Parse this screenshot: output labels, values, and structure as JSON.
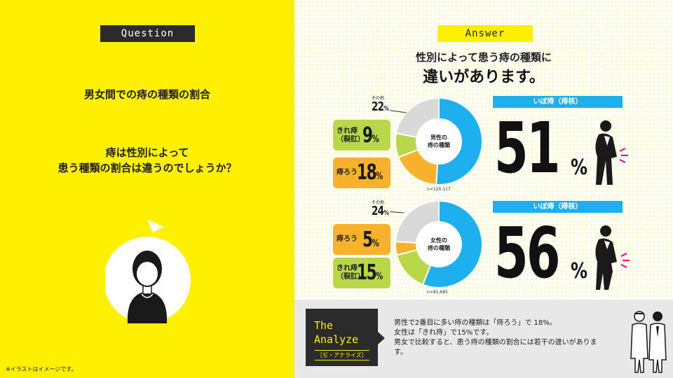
{
  "question": {
    "tag": "Question",
    "title": "男女間での痔の種類の割合",
    "body_lines": [
      "痔は性別によって",
      "患う種類の割合は違うのでしょうか？"
    ]
  },
  "answer": {
    "tag": "Answer",
    "line1": "性別によって患う痔の種類に",
    "line2": "違いがあります。"
  },
  "male": {
    "center_lines": [
      "男性の",
      "痔の種類"
    ],
    "n": "n=120,117",
    "other_label": "その他",
    "other_value": "22",
    "kire_label_lines": [
      "きれ痔",
      "（裂肛）"
    ],
    "kire_value": "9",
    "jirou_label": "痔ろう",
    "jirou_value": "18",
    "ibo_label": "いぼ痔（痔核）",
    "ibo_value": "51",
    "percent_sign": "%"
  },
  "female": {
    "center_lines": [
      "女性の",
      "痔の種類"
    ],
    "n": "n=81,685",
    "other_label": "その他",
    "other_value": "24",
    "jirou_label": "痔ろう",
    "jirou_value": "5",
    "kire_label_lines": [
      "きれ痔",
      "（裂肛）"
    ],
    "kire_value": "15",
    "ibo_label": "いぼ痔（痔核）",
    "ibo_value": "56",
    "percent_sign": "%"
  },
  "chart_data": [
    {
      "type": "pie",
      "categories": [
        "いぼ痔（痔核）",
        "痔ろう",
        "きれ痔（裂肛）",
        "その他"
      ],
      "values": [
        51,
        18,
        9,
        22
      ],
      "colors": [
        "#1EB0EE",
        "#F5B22A",
        "#B8D84A",
        "#D9D9D9"
      ]
    },
    {
      "type": "pie",
      "categories": [
        "いぼ痔（痔核）",
        "きれ痔（裂肛）",
        "痔ろう",
        "その他"
      ],
      "values": [
        56,
        15,
        5,
        24
      ],
      "colors": [
        "#1EB0EE",
        "#B8D84A",
        "#F5B22A",
        "#D9D9D9"
      ]
    }
  ],
  "analyze": {
    "title_lines": [
      "The",
      "Analyze"
    ],
    "subtitle": "［ぢ・アナライズ］",
    "lines": [
      "男性で2番目に多い痔の種類は「痔ろう」で 18%。",
      "女性は「きれ痔」で15%です。",
      "男女で比較すると、患う痔の種類の割合には若干の違いがありま",
      "す。"
    ]
  },
  "footnote": "※イラストはイメージです。",
  "colors": {
    "yellow": "#FFEF00",
    "blue": "#1EB0EE",
    "orange": "#F5B22A",
    "green": "#B8D84A",
    "grey": "#D9D9D9",
    "dark": "#2b2b2b"
  }
}
